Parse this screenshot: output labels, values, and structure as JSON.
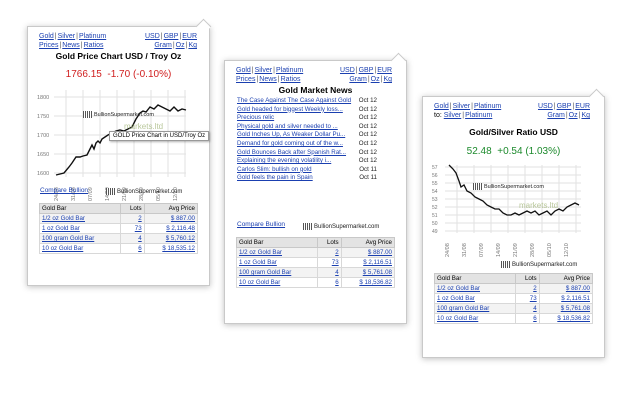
{
  "nav": {
    "gold": "Gold",
    "silver": "Silver",
    "platinum": "Platinum",
    "prices": "Prices",
    "news": "News",
    "ratios": "Ratios",
    "usd": "USD",
    "gbp": "GBP",
    "eur": "EUR",
    "gram": "Gram",
    "oz": "Oz",
    "kg": "Kg",
    "gold_silver_1": "Gold",
    "gold_silver_2": "Silver"
  },
  "panel1": {
    "title": "Gold Price Chart USD / Troy Oz",
    "price": "1766.15",
    "change": "-1.70 (-0.10%)",
    "tooltip": "GOLD Price Chart in USD/Troy Oz",
    "logo_overlay": "BullionSupermarket.com",
    "watermark": "markets.ltd",
    "y_ticks": [
      "1800",
      "1750",
      "1700",
      "1650",
      "1600"
    ],
    "x_ticks": [
      "24/08",
      "31/08",
      "07/09",
      "14/09",
      "21/09",
      "28/09",
      "05/10",
      "12/10"
    ]
  },
  "panel3": {
    "title": "Gold/Silver Ratio USD",
    "price": "52.48",
    "change": "+0.54 (1.03%)",
    "logo_overlay": "BullionSupermarket.com",
    "watermark": "markets.ltd",
    "y_ticks": [
      "57",
      "56",
      "55",
      "54",
      "53",
      "52",
      "51",
      "50",
      "49",
      "48"
    ],
    "x_ticks": [
      "24/08",
      "31/08",
      "07/09",
      "14/09",
      "21/09",
      "28/09",
      "05/10",
      "12/10"
    ]
  },
  "panel2": {
    "title": "Gold Market News",
    "news": [
      {
        "headline": "The Case Against The Case Against Gold",
        "date": "Oct 12"
      },
      {
        "headline": "Gold headed for biggest Weekly loss...",
        "date": "Oct 12"
      },
      {
        "headline": "Precious relic",
        "date": "Oct 12"
      },
      {
        "headline": "Physical gold and silver needed to ...",
        "date": "Oct 12"
      },
      {
        "headline": "Gold Inches Up, As Weaker Dollar Pu...",
        "date": "Oct 12"
      },
      {
        "headline": "Demand for gold coming out of the w...",
        "date": "Oct 12"
      },
      {
        "headline": "Gold Bounces Back after Spanish Rat...",
        "date": "Oct 12"
      },
      {
        "headline": "Explaining the evening volatility i...",
        "date": "Oct 12"
      },
      {
        "headline": "Carlos Slim: bullish on gold",
        "date": "Oct 11"
      },
      {
        "headline": "Gold feels the pain in Spain",
        "date": "Oct 11"
      }
    ]
  },
  "compare": "Compare Bullion",
  "logo": "BullionSupermarket.com",
  "table": {
    "headers": [
      "Gold Bar",
      "Lots",
      "Avg Price"
    ],
    "rows_p1": [
      {
        "name": "1/2 oz Gold Bar",
        "lots": "2",
        "price": "$ 887.00"
      },
      {
        "name": "1 oz Gold Bar",
        "lots": "73",
        "price": "$ 2,116.48"
      },
      {
        "name": "100 gram Gold Bar",
        "lots": "4",
        "price": "$ 5,760.12"
      },
      {
        "name": "10 oz Gold Bar",
        "lots": "6",
        "price": "$ 18,535.12"
      }
    ],
    "rows_p2": [
      {
        "name": "1/2 oz Gold Bar",
        "lots": "2",
        "price": "$ 887.00"
      },
      {
        "name": "1 oz Gold Bar",
        "lots": "73",
        "price": "$ 2,116.51"
      },
      {
        "name": "100 gram Gold Bar",
        "lots": "4",
        "price": "$ 5,761.08"
      },
      {
        "name": "10 oz Gold Bar",
        "lots": "6",
        "price": "$ 18,536.82"
      }
    ],
    "rows_p3": [
      {
        "name": "1/2 oz Gold Bar",
        "lots": "2",
        "price": "$ 887.00"
      },
      {
        "name": "1 oz Gold Bar",
        "lots": "73",
        "price": "$ 2,116.51"
      },
      {
        "name": "100 gram Gold Bar",
        "lots": "4",
        "price": "$ 5,761.08"
      },
      {
        "name": "10 oz Gold Bar",
        "lots": "6",
        "price": "$ 18,536.82"
      }
    ]
  },
  "colors": {
    "link": "#1a3fb0",
    "down": "#d02020",
    "up": "#1c8a2c"
  }
}
